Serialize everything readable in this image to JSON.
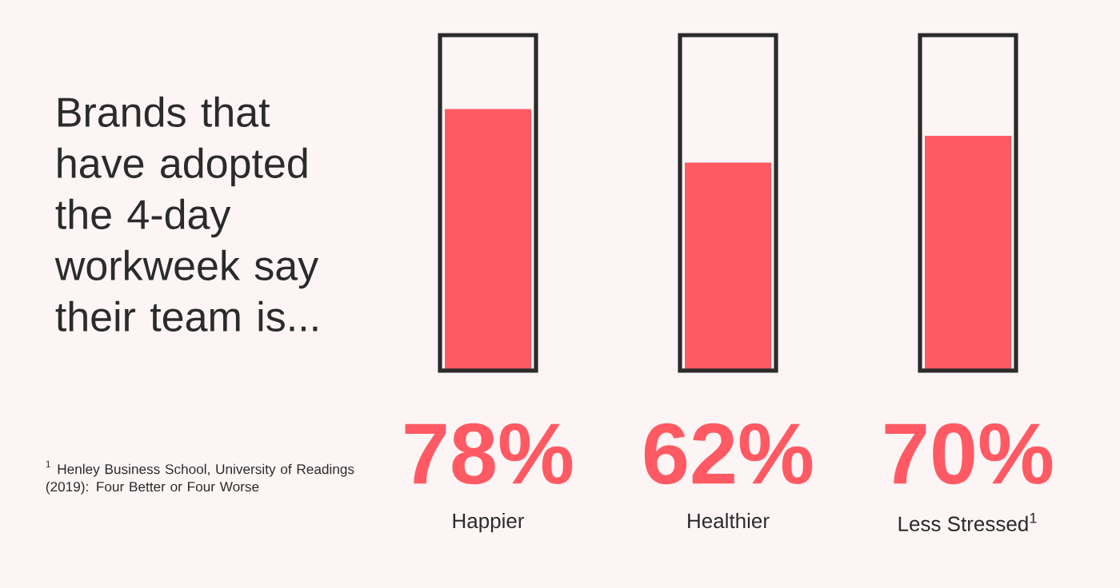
{
  "chart_data": {
    "type": "bar",
    "title": "Brands that have adopted the 4-day workweek say their team is...",
    "categories": [
      "Happier",
      "Healthier",
      "Less Stressed$^{1}$"
    ],
    "values": [
      78,
      62,
      70
    ],
    "value_labels": [
      "78%",
      "62%",
      "70%"
    ],
    "color": "#ff5a64",
    "ylim": [
      0,
      100
    ],
    "tick_labels": "x",
    "annotations": [
      "$^{1}$ Henley Business School, University of Readings (2019): Four Better or Four Worse"
    ]
  }
}
